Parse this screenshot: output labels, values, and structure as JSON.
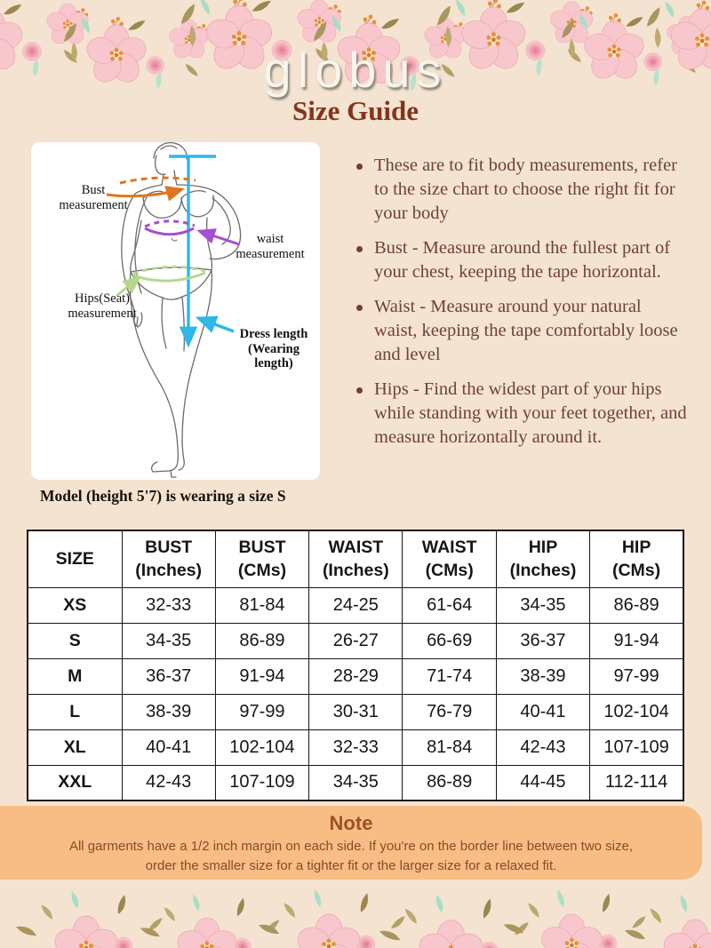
{
  "header": {
    "logo": "globus",
    "title": "Size Guide"
  },
  "diagram": {
    "bust_label": "Bust\nmeasurement",
    "waist_label": "waist\nmeasurement",
    "hips_label": "Hips(Seat)\nmeasurement",
    "dress_label": "Dress length\n(Wearing length)",
    "caption": "Model (height 5'7) is wearing a size S",
    "colors": {
      "bust": "#e0751c",
      "waist": "#a64fd0",
      "hips": "#b7d78c",
      "dress": "#2db8e8"
    }
  },
  "instructions": {
    "items": [
      "These are to fit body measurements, refer to the size chart to choose the right fit for your body",
      "Bust - Measure around the fullest part of your chest, keeping the tape horizontal.",
      "Waist - Measure around your natural waist, keeping the tape comfortably loose and level",
      "Hips - Find the widest part of your hips while standing with your feet together, and measure horizontally around it."
    ]
  },
  "size_table": {
    "headers": [
      "SIZE",
      "BUST\n(Inches)",
      "BUST\n(CMs)",
      "WAIST\n(Inches)",
      "WAIST\n(CMs)",
      "HIP\n(Inches)",
      "HIP\n(CMs)"
    ],
    "rows": [
      [
        "XS",
        "32-33",
        "81-84",
        "24-25",
        "61-64",
        "34-35",
        "86-89"
      ],
      [
        "S",
        "34-35",
        "86-89",
        "26-27",
        "66-69",
        "36-37",
        "91-94"
      ],
      [
        "M",
        "36-37",
        "91-94",
        "28-29",
        "71-74",
        "38-39",
        "97-99"
      ],
      [
        "L",
        "38-39",
        "97-99",
        "30-31",
        "76-79",
        "40-41",
        "102-104"
      ],
      [
        "XL",
        "40-41",
        "102-104",
        "32-33",
        "81-84",
        "42-43",
        "107-109"
      ],
      [
        "XXL",
        "42-43",
        "107-109",
        "34-35",
        "86-89",
        "44-45",
        "112-114"
      ]
    ]
  },
  "note": {
    "title": "Note",
    "body": "All garments have a 1/2 inch margin on each side. If you're on the border line between two size, order the smaller size for a tighter fit or the larger size for a relaxed fit."
  },
  "theme": {
    "background": "#f4e3d0",
    "note_background": "#f7bd85",
    "title_color": "#84341d",
    "text_brown": "#6e4233"
  }
}
